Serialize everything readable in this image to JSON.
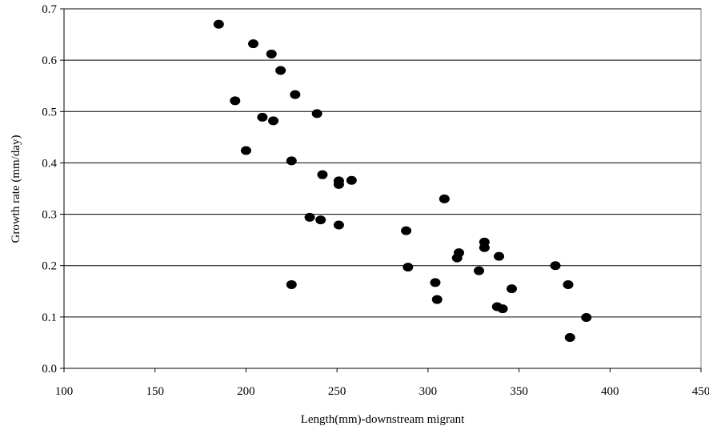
{
  "chart_data": {
    "type": "scatter",
    "title": "",
    "xlabel": "Length(mm)-downstream migrant",
    "ylabel": "Growth rate  (mm/day)",
    "xlim": [
      100,
      450
    ],
    "ylim": [
      0.0,
      0.7
    ],
    "x_ticks": [
      100,
      150,
      200,
      250,
      300,
      350,
      400,
      450
    ],
    "y_ticks": [
      0.0,
      0.1,
      0.2,
      0.3,
      0.4,
      0.5,
      0.6,
      0.7
    ],
    "x_tick_labels": [
      "100",
      "150",
      "200",
      "250",
      "300",
      "350",
      "400",
      "450"
    ],
    "y_tick_labels": [
      "0.0",
      "0.1",
      "0.2",
      "0.3",
      "0.4",
      "0.5",
      "0.6",
      "0.7"
    ],
    "grid": "horizontal",
    "legend": "none",
    "marker_color": "#000000",
    "points": [
      {
        "x": 185,
        "y": 0.67
      },
      {
        "x": 204,
        "y": 0.632
      },
      {
        "x": 214,
        "y": 0.612
      },
      {
        "x": 219,
        "y": 0.58
      },
      {
        "x": 227,
        "y": 0.533
      },
      {
        "x": 194,
        "y": 0.521
      },
      {
        "x": 239,
        "y": 0.496
      },
      {
        "x": 209,
        "y": 0.489
      },
      {
        "x": 215,
        "y": 0.482
      },
      {
        "x": 200,
        "y": 0.424
      },
      {
        "x": 225,
        "y": 0.404
      },
      {
        "x": 242,
        "y": 0.377
      },
      {
        "x": 251,
        "y": 0.365
      },
      {
        "x": 258,
        "y": 0.366
      },
      {
        "x": 251,
        "y": 0.358
      },
      {
        "x": 309,
        "y": 0.33
      },
      {
        "x": 235,
        "y": 0.294
      },
      {
        "x": 241,
        "y": 0.289
      },
      {
        "x": 251,
        "y": 0.279
      },
      {
        "x": 288,
        "y": 0.268
      },
      {
        "x": 331,
        "y": 0.246
      },
      {
        "x": 331,
        "y": 0.235
      },
      {
        "x": 317,
        "y": 0.225
      },
      {
        "x": 316,
        "y": 0.215
      },
      {
        "x": 339,
        "y": 0.218
      },
      {
        "x": 289,
        "y": 0.197
      },
      {
        "x": 370,
        "y": 0.2
      },
      {
        "x": 328,
        "y": 0.19
      },
      {
        "x": 304,
        "y": 0.167
      },
      {
        "x": 225,
        "y": 0.163
      },
      {
        "x": 377,
        "y": 0.163
      },
      {
        "x": 346,
        "y": 0.155
      },
      {
        "x": 305,
        "y": 0.134
      },
      {
        "x": 338,
        "y": 0.12
      },
      {
        "x": 341,
        "y": 0.116
      },
      {
        "x": 387,
        "y": 0.099
      },
      {
        "x": 378,
        "y": 0.06
      }
    ]
  }
}
